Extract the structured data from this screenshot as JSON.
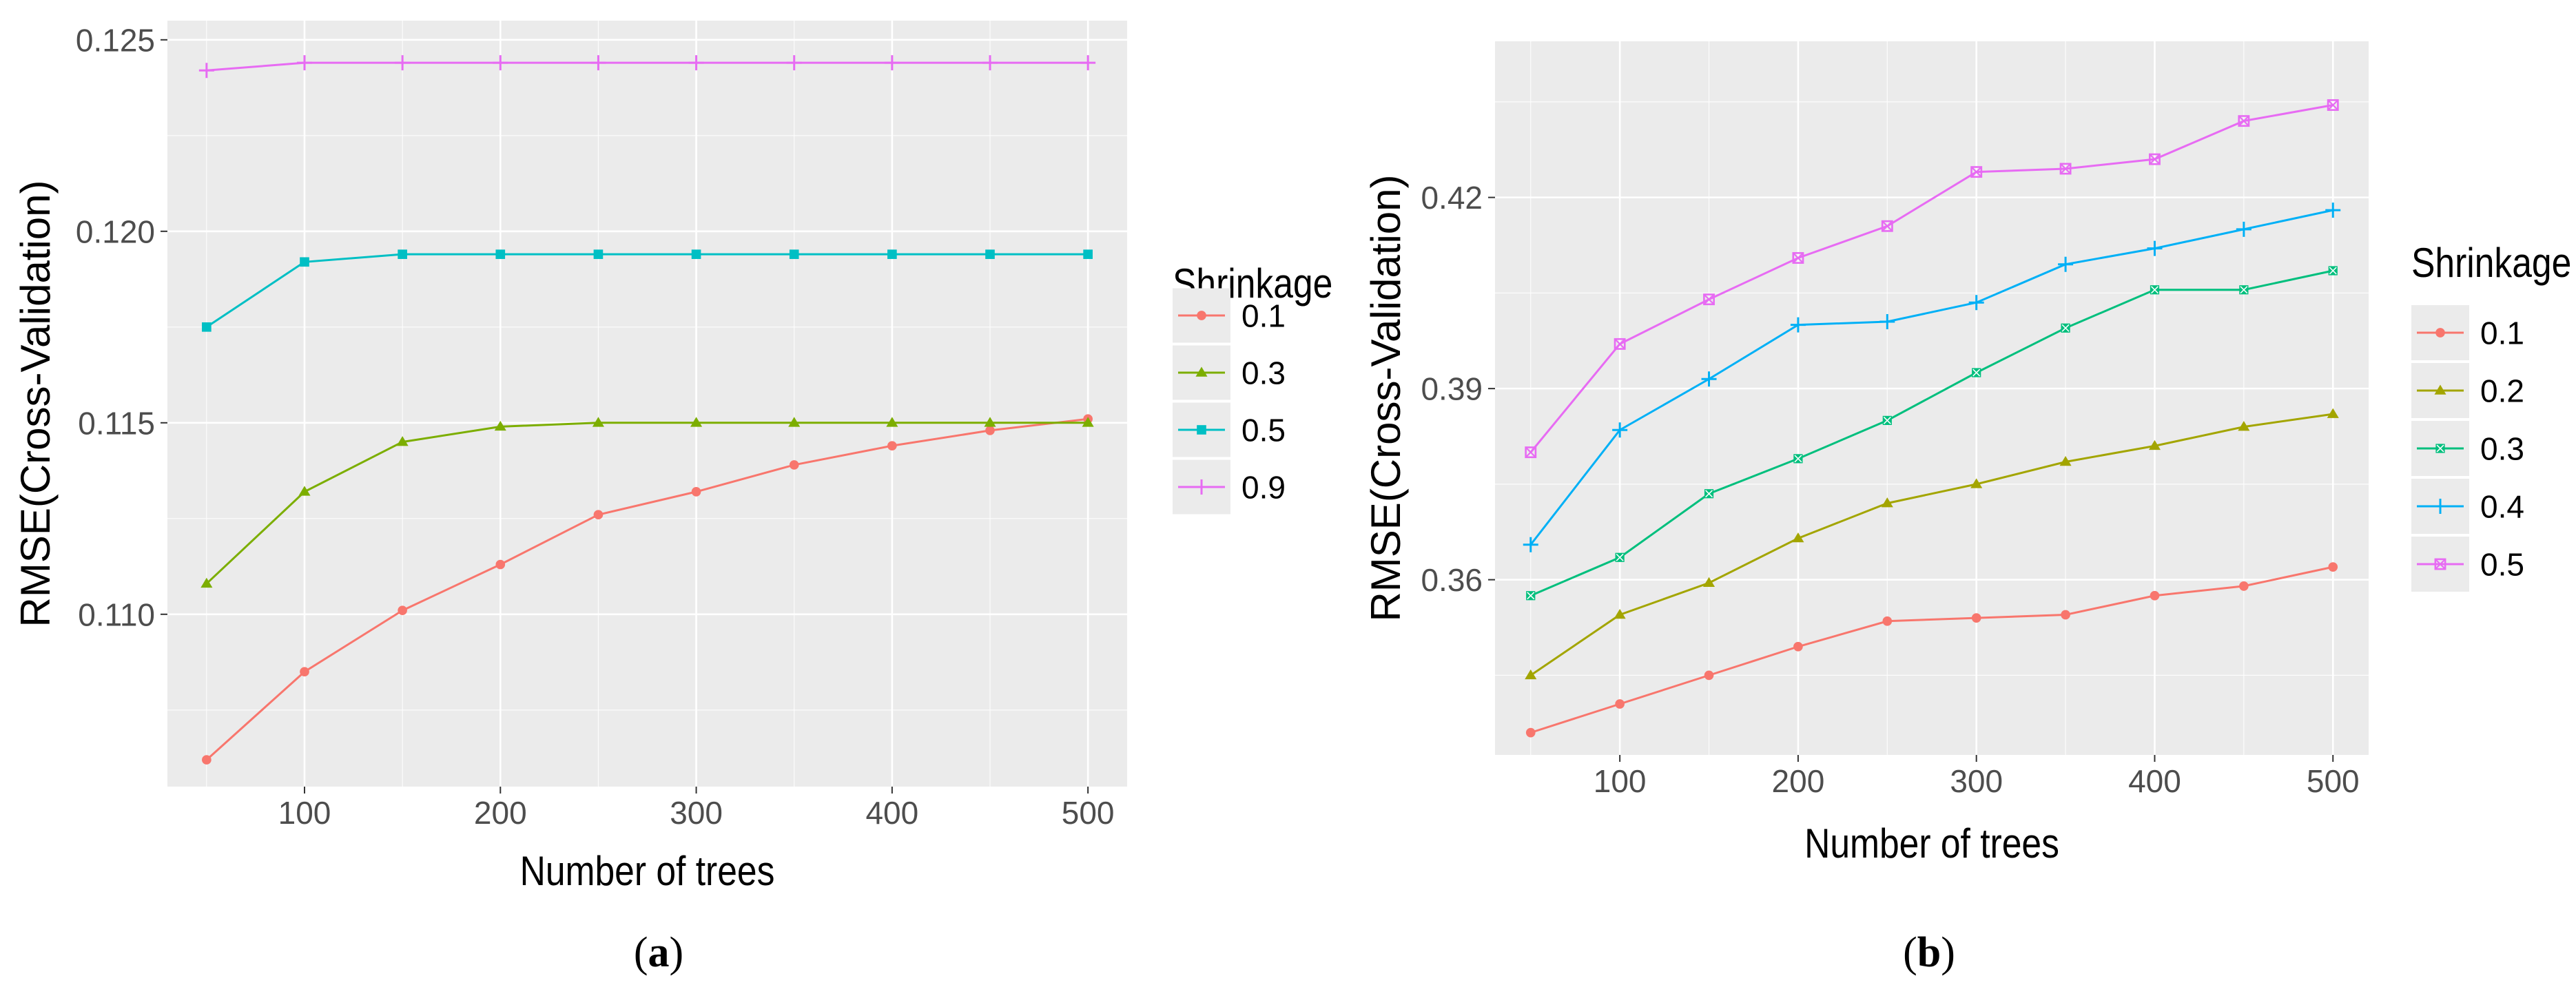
{
  "colors": {
    "panel_bg": "#ebebeb",
    "grid_major": "#ffffff",
    "tick_text": "#4d4d4d",
    "axis_text": "#000000",
    "red": "#F8766D",
    "olive": "#A3A500",
    "green": "#7CAE00",
    "teal": "#00BF7D",
    "cyan": "#00BFC4",
    "blue": "#00B0F6",
    "magenta": "#E76BF3"
  },
  "chart_data": [
    {
      "id": "a",
      "caption": {
        "open": "(",
        "letter": "a",
        "close": ")"
      },
      "type": "line",
      "title": "",
      "xlabel": "Number of trees",
      "ylabel": "RMSE(Cross-Validation)",
      "xlim": [
        30,
        520
      ],
      "ylim": [
        0.1055,
        0.1255
      ],
      "xticks": [
        100,
        200,
        300,
        400,
        500
      ],
      "xtick_labels": [
        "100",
        "200",
        "300",
        "400",
        "500"
      ],
      "yticks": [
        0.11,
        0.115,
        0.12,
        0.125
      ],
      "ytick_labels": [
        "0.110",
        "0.115",
        "0.120",
        "0.125"
      ],
      "legend_title": "Shrinkage",
      "legend_position": "right",
      "x": [
        50,
        100,
        150,
        200,
        250,
        300,
        350,
        400,
        450,
        500
      ],
      "series": [
        {
          "name": "0.1",
          "color": "#F8766D",
          "shape": "circle",
          "values": [
            0.1062,
            0.1085,
            0.1101,
            0.1113,
            0.1126,
            0.1132,
            0.1139,
            0.1144,
            0.1148,
            0.1151
          ]
        },
        {
          "name": "0.3",
          "color": "#7CAE00",
          "shape": "triangle",
          "values": [
            0.1108,
            0.1132,
            0.1145,
            0.1149,
            0.115,
            0.115,
            0.115,
            0.115,
            0.115,
            0.115
          ]
        },
        {
          "name": "0.5",
          "color": "#00BFC4",
          "shape": "square",
          "values": [
            0.1175,
            0.1192,
            0.1194,
            0.1194,
            0.1194,
            0.1194,
            0.1194,
            0.1194,
            0.1194,
            0.1194
          ]
        },
        {
          "name": "0.9",
          "color": "#E76BF3",
          "shape": "plus",
          "values": [
            0.1242,
            0.1244,
            0.1244,
            0.1244,
            0.1244,
            0.1244,
            0.1244,
            0.1244,
            0.1244,
            0.1244
          ]
        }
      ]
    },
    {
      "id": "b",
      "caption": {
        "open": "(",
        "letter": "b",
        "close": ")"
      },
      "type": "line",
      "title": "",
      "xlabel": "Number of trees",
      "ylabel": "RMSE(Cross-Validation)",
      "xlim": [
        30,
        520
      ],
      "ylim": [
        0.3325,
        0.4445
      ],
      "xticks": [
        100,
        200,
        300,
        400,
        500
      ],
      "xtick_labels": [
        "100",
        "200",
        "300",
        "400",
        "500"
      ],
      "yticks": [
        0.36,
        0.39,
        0.42
      ],
      "ytick_labels": [
        "0.36",
        "0.39",
        "0.42"
      ],
      "legend_title": "Shrinkage",
      "legend_position": "right",
      "x": [
        50,
        100,
        150,
        200,
        250,
        300,
        350,
        400,
        450,
        500
      ],
      "series": [
        {
          "name": "0.1",
          "color": "#F8766D",
          "shape": "circle",
          "values": [
            0.336,
            0.3405,
            0.345,
            0.3495,
            0.3535,
            0.354,
            0.3545,
            0.3575,
            0.359,
            0.362
          ]
        },
        {
          "name": "0.2",
          "color": "#A3A500",
          "shape": "triangle",
          "values": [
            0.345,
            0.3545,
            0.3595,
            0.3665,
            0.372,
            0.375,
            0.3785,
            0.381,
            0.384,
            0.386
          ]
        },
        {
          "name": "0.3",
          "color": "#00BF7D",
          "shape": "square-x",
          "values": [
            0.3575,
            0.3635,
            0.3735,
            0.379,
            0.385,
            0.3925,
            0.3995,
            0.4055,
            0.4055,
            0.4085
          ]
        },
        {
          "name": "0.4",
          "color": "#00B0F6",
          "shape": "plus",
          "values": [
            0.3655,
            0.3835,
            0.3915,
            0.4,
            0.4005,
            0.4035,
            0.4095,
            0.412,
            0.415,
            0.418
          ]
        },
        {
          "name": "0.5",
          "color": "#E76BF3",
          "shape": "boxed-x",
          "values": [
            0.38,
            0.397,
            0.404,
            0.4105,
            0.4155,
            0.424,
            0.4245,
            0.426,
            0.432,
            0.4345
          ]
        }
      ]
    }
  ]
}
